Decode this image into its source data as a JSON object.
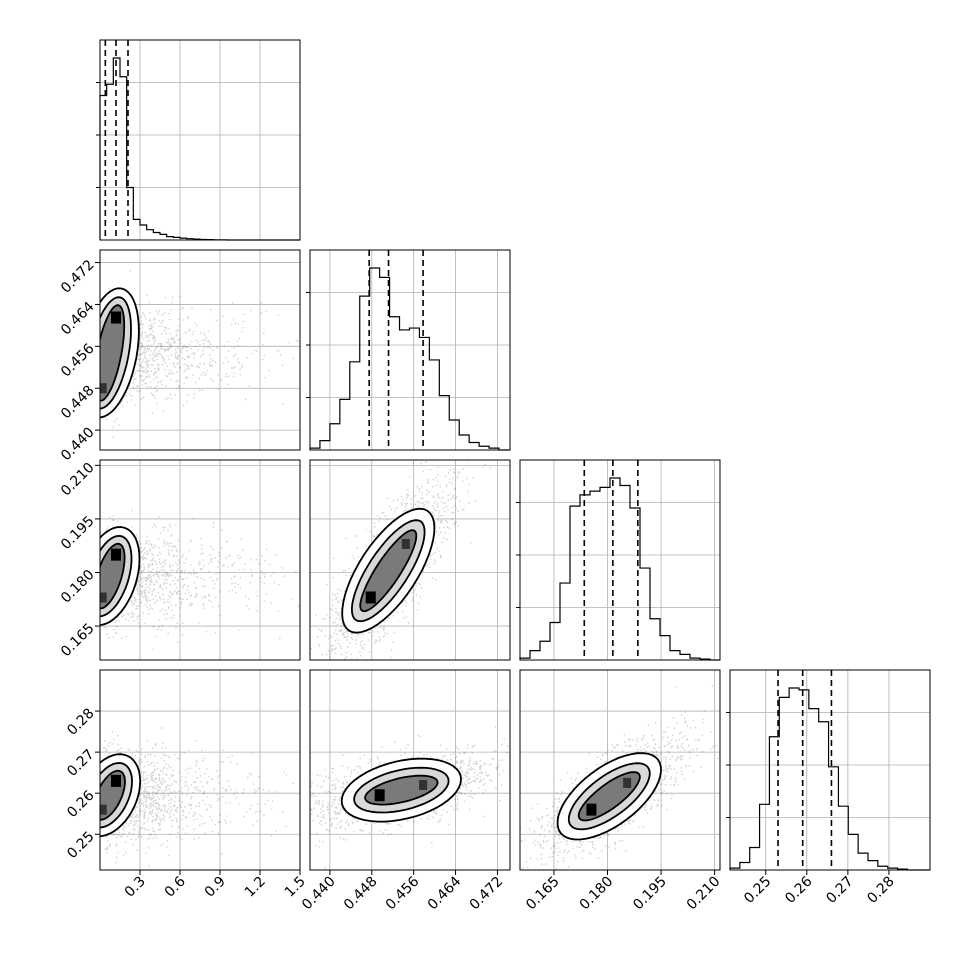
{
  "chart_data": {
    "type": "corner",
    "title": "",
    "params": [
      {
        "xlabel": "",
        "range": [
          0.0,
          1.5
        ],
        "ticks": [
          "0.3",
          "0.6",
          "0.9",
          "1.2",
          "1.5"
        ],
        "tick_values": [
          0.3,
          0.6,
          0.9,
          1.2,
          1.5
        ],
        "quantiles": [
          0.04,
          0.12,
          0.21
        ],
        "hist_bins": [
          0.0,
          0.05,
          0.1,
          0.15,
          0.2,
          0.25,
          0.3,
          0.35,
          0.4,
          0.45,
          0.5,
          0.55,
          0.6,
          0.65,
          0.7,
          0.75,
          0.8,
          0.85,
          0.9,
          0.95,
          1.0,
          1.05,
          1.1,
          1.15,
          1.2,
          1.25,
          1.3,
          1.35,
          1.4,
          1.45,
          1.5
        ],
        "hist_counts": [
          0.77,
          0.83,
          0.97,
          0.87,
          0.28,
          0.11,
          0.08,
          0.055,
          0.04,
          0.03,
          0.018,
          0.014,
          0.01,
          0.007,
          0.005,
          0.003,
          0.002,
          0.001,
          0.001,
          0.0,
          0.0,
          0.0,
          0.0,
          0.0,
          0.0,
          0.0,
          0.0,
          0.0,
          0.0,
          0.0
        ]
      },
      {
        "xlabel": "",
        "range": [
          0.4362,
          0.4744
        ],
        "ticks": [
          "0.440",
          "0.448",
          "0.456",
          "0.464",
          "0.472"
        ],
        "tick_values": [
          0.44,
          0.448,
          0.456,
          0.464,
          0.472
        ],
        "quantiles": [
          0.4475,
          0.4512,
          0.4578
        ],
        "hist_bins": [
          0.4362,
          0.4381,
          0.44,
          0.4419,
          0.4438,
          0.4457,
          0.4476,
          0.4495,
          0.4514,
          0.4533,
          0.4552,
          0.4571,
          0.459,
          0.4609,
          0.4628,
          0.4647,
          0.4666,
          0.4685,
          0.4704,
          0.4723,
          0.4744
        ],
        "hist_counts": [
          0.01,
          0.05,
          0.14,
          0.27,
          0.47,
          0.82,
          0.97,
          0.92,
          0.71,
          0.64,
          0.65,
          0.6,
          0.48,
          0.29,
          0.16,
          0.08,
          0.04,
          0.02,
          0.01,
          0.0
        ]
      },
      {
        "xlabel": "",
        "range": [
          0.1555,
          0.2115
        ],
        "ticks": [
          "0.165",
          "0.180",
          "0.195",
          "0.210"
        ],
        "tick_values": [
          0.165,
          0.18,
          0.195,
          0.21
        ],
        "quantiles": [
          0.1735,
          0.1815,
          0.1885
        ],
        "hist_bins": [
          0.1555,
          0.1583,
          0.1611,
          0.1639,
          0.1667,
          0.1695,
          0.1723,
          0.1751,
          0.1779,
          0.1807,
          0.1835,
          0.1863,
          0.1891,
          0.1919,
          0.1947,
          0.1975,
          0.2003,
          0.2031,
          0.2059,
          0.2087,
          0.2115
        ],
        "hist_counts": [
          0.01,
          0.05,
          0.1,
          0.2,
          0.41,
          0.82,
          0.88,
          0.9,
          0.92,
          0.97,
          0.93,
          0.81,
          0.49,
          0.22,
          0.13,
          0.05,
          0.03,
          0.01,
          0.005,
          0.0
        ]
      },
      {
        "xlabel": "",
        "range": [
          0.2413,
          0.29
        ],
        "ticks": [
          "0.25",
          "0.26",
          "0.27",
          "0.28"
        ],
        "tick_values": [
          0.25,
          0.26,
          0.27,
          0.28
        ],
        "quantiles": [
          0.253,
          0.259,
          0.266
        ],
        "hist_bins": [
          0.2413,
          0.2437,
          0.2461,
          0.2485,
          0.2509,
          0.2533,
          0.2557,
          0.2581,
          0.2605,
          0.2629,
          0.2653,
          0.2677,
          0.2701,
          0.2725,
          0.2749,
          0.2773,
          0.2797,
          0.2821,
          0.2845,
          0.2869,
          0.29
        ],
        "hist_counts": [
          0.01,
          0.04,
          0.12,
          0.35,
          0.71,
          0.92,
          0.97,
          0.96,
          0.86,
          0.79,
          0.55,
          0.34,
          0.19,
          0.09,
          0.05,
          0.02,
          0.01,
          0.005,
          0.0,
          0.0
        ]
      }
    ],
    "y_tick_labels": {
      "row1": [
        "0.440",
        "0.448",
        "0.456",
        "0.464",
        "0.472"
      ],
      "row2": [
        "0.165",
        "0.180",
        "0.195",
        "0.210"
      ],
      "row3": [
        "0.25",
        "0.26",
        "0.27",
        "0.28"
      ]
    },
    "pairs": [
      {
        "row": 1,
        "col": 0,
        "peaks": [
          [
            0.12,
            0.4615
          ],
          [
            0.02,
            0.448
          ]
        ],
        "spread": 1
      },
      {
        "row": 2,
        "col": 0,
        "peaks": [
          [
            0.12,
            0.185
          ],
          [
            0.02,
            0.173
          ]
        ],
        "spread": 1
      },
      {
        "row": 2,
        "col": 1,
        "peaks": [
          [
            0.4478,
            0.173
          ],
          [
            0.4545,
            0.188
          ]
        ],
        "spread": 0
      },
      {
        "row": 3,
        "col": 0,
        "peaks": [
          [
            0.12,
            0.263
          ],
          [
            0.02,
            0.256
          ]
        ],
        "spread": 1
      },
      {
        "row": 3,
        "col": 1,
        "peaks": [
          [
            0.4495,
            0.2595
          ],
          [
            0.4578,
            0.262
          ]
        ],
        "spread": 0
      },
      {
        "row": 3,
        "col": 2,
        "peaks": [
          [
            0.1755,
            0.256
          ],
          [
            0.1855,
            0.2625
          ]
        ],
        "spread": 0
      }
    ],
    "grid": true,
    "legend": "none"
  }
}
